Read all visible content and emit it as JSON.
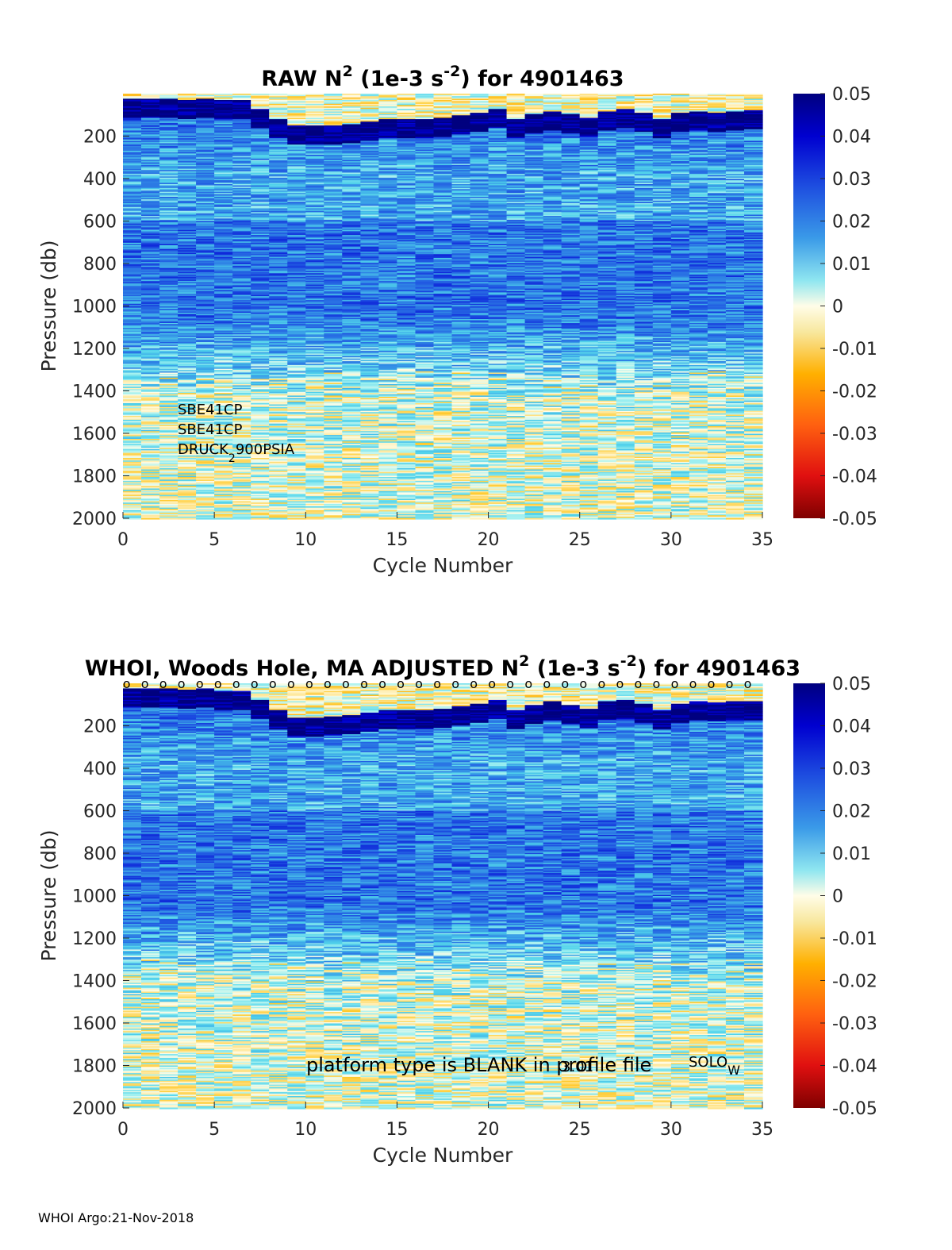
{
  "chart_data": [
    {
      "type": "heatmap",
      "title_main": "RAW N",
      "title_sup1": "2",
      "title_mid": " (1e-3 s",
      "title_sup2": "-2",
      "title_end": ") for 4901463",
      "xlabel": "Cycle Number",
      "ylabel": "Pressure (db)",
      "xlim": [
        0,
        35
      ],
      "ylim": [
        0,
        2000
      ],
      "y_reversed": true,
      "xticks": [
        "0",
        "5",
        "10",
        "15",
        "20",
        "25",
        "30",
        "35"
      ],
      "yticks": [
        "200",
        "400",
        "600",
        "800",
        "1000",
        "1200",
        "1400",
        "1600",
        "1800",
        "2000"
      ],
      "colorbar": {
        "range": [
          -0.05,
          0.05
        ],
        "ticks": [
          "0.05",
          "0.04",
          "0.03",
          "0.02",
          "0.01",
          "0",
          "-0.01",
          "-0.02",
          "-0.03",
          "-0.04",
          "-0.05"
        ]
      },
      "annotations": {
        "line1": "SBE41CP",
        "line2": "SBE41CP",
        "line3_a": "DRUCK",
        "line3_sub": "2",
        "line3_b": "900PSIA"
      },
      "mixed_layer_depth_per_cycle": [
        20,
        20,
        20,
        25,
        20,
        30,
        30,
        70,
        120,
        150,
        150,
        145,
        140,
        130,
        120,
        115,
        115,
        110,
        100,
        90,
        70,
        120,
        95,
        80,
        95,
        110,
        80,
        70,
        90,
        120,
        90,
        80,
        85,
        80,
        75
      ],
      "n2_deep_stratification": "high near 100-200 db, moderate 600-1000 db, near zero below 1400 db"
    },
    {
      "type": "heatmap",
      "title_main": "WHOI, Woods Hole, MA  ADJUSTED N",
      "title_sup1": "2",
      "title_mid": " (1e-3 s",
      "title_sup2": "-2",
      "title_end": ") for 4901463",
      "xlabel": "Cycle Number",
      "ylabel": "Pressure (db)",
      "xlim": [
        0,
        35
      ],
      "ylim": [
        0,
        2000
      ],
      "y_reversed": true,
      "xticks": [
        "0",
        "5",
        "10",
        "15",
        "20",
        "25",
        "30",
        "35"
      ],
      "yticks": [
        "200",
        "400",
        "600",
        "800",
        "1000",
        "1200",
        "1400",
        "1600",
        "1800",
        "2000"
      ],
      "colorbar": {
        "range": [
          -0.05,
          0.05
        ],
        "ticks": [
          "0.05",
          "0.04",
          "0.03",
          "0.02",
          "0.01",
          "0",
          "-0.01",
          "-0.02",
          "-0.03",
          "-0.04",
          "-0.05"
        ]
      },
      "marker_glyph": "o",
      "marker_count": 35,
      "annotations": {
        "note": "platform type is BLANK in profile file",
        "overlay": "3.01",
        "solo_a": "SOLO",
        "solo_sub": "W"
      }
    }
  ],
  "footer": "WHOI Argo:21-Nov-2018"
}
